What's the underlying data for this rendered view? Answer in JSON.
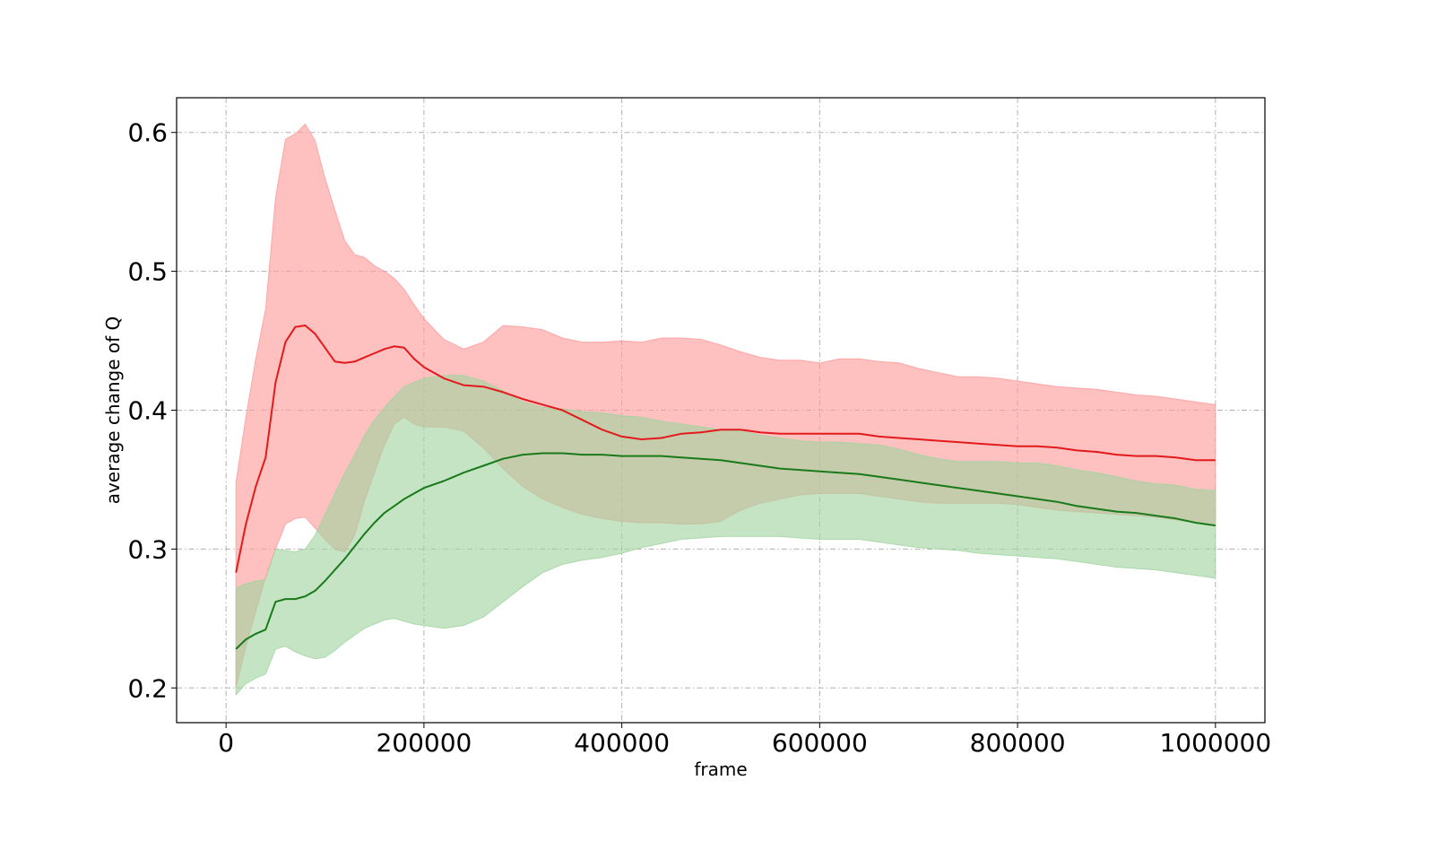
{
  "chart_data": {
    "type": "line",
    "title": "",
    "xlabel": "frame",
    "ylabel": "average change of Q",
    "xlim": [
      -50000,
      1050000
    ],
    "ylim": [
      0.175,
      0.625
    ],
    "x_ticks": [
      0,
      200000,
      400000,
      600000,
      800000,
      1000000
    ],
    "x_tick_labels": [
      "0",
      "200000",
      "400000",
      "600000",
      "800000",
      "1000000"
    ],
    "y_ticks": [
      0.2,
      0.3,
      0.4,
      0.5,
      0.6
    ],
    "y_tick_labels": [
      "0.2",
      "0.3",
      "0.4",
      "0.5",
      "0.6"
    ],
    "grid": true,
    "legend": "none",
    "series": [
      {
        "color": "#e31a1c",
        "band_color": "#ff9a9a",
        "x": [
          10000,
          20000,
          30000,
          40000,
          50000,
          60000,
          70000,
          80000,
          90000,
          100000,
          110000,
          120000,
          130000,
          140000,
          150000,
          160000,
          170000,
          180000,
          190000,
          200000,
          220000,
          240000,
          260000,
          280000,
          300000,
          320000,
          340000,
          360000,
          380000,
          400000,
          420000,
          440000,
          460000,
          480000,
          500000,
          520000,
          540000,
          560000,
          580000,
          600000,
          620000,
          640000,
          660000,
          680000,
          700000,
          720000,
          740000,
          760000,
          780000,
          800000,
          820000,
          840000,
          860000,
          880000,
          900000,
          920000,
          940000,
          960000,
          980000,
          1000000
        ],
        "mean": [
          0.283,
          0.318,
          0.345,
          0.366,
          0.42,
          0.449,
          0.46,
          0.461,
          0.455,
          0.445,
          0.435,
          0.434,
          0.435,
          0.438,
          0.441,
          0.444,
          0.446,
          0.445,
          0.437,
          0.431,
          0.423,
          0.418,
          0.417,
          0.413,
          0.408,
          0.404,
          0.4,
          0.393,
          0.386,
          0.381,
          0.379,
          0.38,
          0.383,
          0.384,
          0.386,
          0.386,
          0.384,
          0.383,
          0.383,
          0.383,
          0.383,
          0.383,
          0.381,
          0.38,
          0.379,
          0.378,
          0.377,
          0.376,
          0.375,
          0.374,
          0.374,
          0.373,
          0.371,
          0.37,
          0.368,
          0.367,
          0.367,
          0.366,
          0.364,
          0.364
        ],
        "upper": [
          0.348,
          0.395,
          0.437,
          0.473,
          0.553,
          0.595,
          0.599,
          0.606,
          0.594,
          0.567,
          0.544,
          0.522,
          0.512,
          0.51,
          0.504,
          0.5,
          0.495,
          0.487,
          0.476,
          0.466,
          0.451,
          0.444,
          0.449,
          0.461,
          0.46,
          0.458,
          0.452,
          0.449,
          0.449,
          0.45,
          0.449,
          0.452,
          0.452,
          0.451,
          0.447,
          0.442,
          0.438,
          0.436,
          0.436,
          0.434,
          0.437,
          0.437,
          0.435,
          0.434,
          0.43,
          0.427,
          0.424,
          0.424,
          0.423,
          0.421,
          0.419,
          0.417,
          0.416,
          0.415,
          0.413,
          0.411,
          0.41,
          0.408,
          0.406,
          0.404
        ],
        "lower": [
          0.2,
          0.23,
          0.255,
          0.28,
          0.3,
          0.318,
          0.322,
          0.323,
          0.315,
          0.307,
          0.3,
          0.298,
          0.31,
          0.335,
          0.355,
          0.375,
          0.39,
          0.395,
          0.39,
          0.388,
          0.388,
          0.385,
          0.373,
          0.358,
          0.345,
          0.336,
          0.33,
          0.325,
          0.322,
          0.32,
          0.319,
          0.319,
          0.318,
          0.318,
          0.32,
          0.328,
          0.333,
          0.336,
          0.339,
          0.34,
          0.34,
          0.34,
          0.338,
          0.336,
          0.334,
          0.333,
          0.333,
          0.333,
          0.333,
          0.332,
          0.33,
          0.328,
          0.327,
          0.326,
          0.325,
          0.324,
          0.323,
          0.321,
          0.319,
          0.317
        ]
      },
      {
        "color": "#1a7a1a",
        "band_color": "#9fd49f",
        "x": [
          10000,
          20000,
          30000,
          40000,
          50000,
          60000,
          70000,
          80000,
          90000,
          100000,
          110000,
          120000,
          130000,
          140000,
          150000,
          160000,
          170000,
          180000,
          190000,
          200000,
          220000,
          240000,
          260000,
          280000,
          300000,
          320000,
          340000,
          360000,
          380000,
          400000,
          420000,
          440000,
          460000,
          480000,
          500000,
          520000,
          540000,
          560000,
          580000,
          600000,
          620000,
          640000,
          660000,
          680000,
          700000,
          720000,
          740000,
          760000,
          780000,
          800000,
          820000,
          840000,
          860000,
          880000,
          900000,
          920000,
          940000,
          960000,
          980000,
          1000000
        ],
        "mean": [
          0.228,
          0.235,
          0.239,
          0.242,
          0.262,
          0.264,
          0.264,
          0.266,
          0.27,
          0.277,
          0.285,
          0.293,
          0.302,
          0.311,
          0.319,
          0.326,
          0.331,
          0.336,
          0.34,
          0.344,
          0.349,
          0.355,
          0.36,
          0.365,
          0.368,
          0.369,
          0.369,
          0.368,
          0.368,
          0.367,
          0.367,
          0.367,
          0.366,
          0.365,
          0.364,
          0.362,
          0.36,
          0.358,
          0.357,
          0.356,
          0.355,
          0.354,
          0.352,
          0.35,
          0.348,
          0.346,
          0.344,
          0.342,
          0.34,
          0.338,
          0.336,
          0.334,
          0.331,
          0.329,
          0.327,
          0.326,
          0.324,
          0.322,
          0.319,
          0.317
        ],
        "upper": [
          0.272,
          0.275,
          0.277,
          0.278,
          0.3,
          0.299,
          0.298,
          0.3,
          0.31,
          0.325,
          0.34,
          0.355,
          0.368,
          0.382,
          0.393,
          0.402,
          0.41,
          0.417,
          0.42,
          0.423,
          0.425,
          0.425,
          0.421,
          0.414,
          0.406,
          0.402,
          0.401,
          0.399,
          0.398,
          0.396,
          0.395,
          0.392,
          0.39,
          0.388,
          0.386,
          0.385,
          0.382,
          0.38,
          0.378,
          0.377,
          0.377,
          0.376,
          0.375,
          0.372,
          0.368,
          0.365,
          0.363,
          0.363,
          0.363,
          0.362,
          0.362,
          0.36,
          0.357,
          0.355,
          0.352,
          0.349,
          0.347,
          0.346,
          0.343,
          0.342
        ],
        "lower": [
          0.195,
          0.203,
          0.207,
          0.21,
          0.228,
          0.23,
          0.226,
          0.223,
          0.221,
          0.222,
          0.227,
          0.233,
          0.238,
          0.243,
          0.246,
          0.249,
          0.25,
          0.248,
          0.246,
          0.245,
          0.243,
          0.245,
          0.251,
          0.262,
          0.273,
          0.283,
          0.289,
          0.292,
          0.294,
          0.297,
          0.301,
          0.304,
          0.307,
          0.308,
          0.309,
          0.309,
          0.309,
          0.309,
          0.308,
          0.307,
          0.307,
          0.307,
          0.305,
          0.303,
          0.301,
          0.3,
          0.299,
          0.297,
          0.296,
          0.295,
          0.294,
          0.293,
          0.291,
          0.289,
          0.287,
          0.286,
          0.285,
          0.283,
          0.281,
          0.279
        ]
      }
    ]
  }
}
